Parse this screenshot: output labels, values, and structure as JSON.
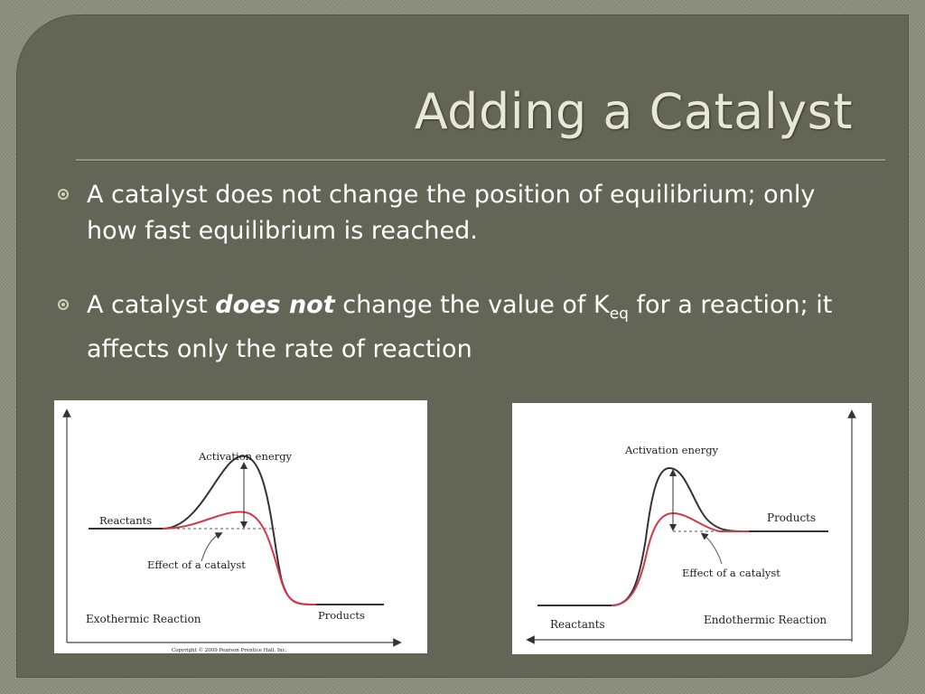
{
  "slide": {
    "title": "Adding a Catalyst",
    "bullets": [
      {
        "text": "A catalyst does not change the position of equilibrium; only how fast equilibrium is reached."
      },
      {
        "prefix": "A catalyst ",
        "emphasis": "does not",
        "middle": " change the value of K",
        "subscript": "eq",
        "suffix": " for a reaction; it affects only the rate of reaction"
      }
    ]
  },
  "figures": {
    "exothermic": {
      "activation_label": "Activation energy",
      "reactants_label": "Reactants",
      "catalyst_label": "Effect of a catalyst",
      "reaction_label": "Exothermic Reaction",
      "products_label": "Products",
      "copyright": "Copyright © 2009 Pearson Prentice Hall, Inc."
    },
    "endothermic": {
      "activation_label": "Activation energy",
      "products_label": "Products",
      "catalyst_label": "Effect of a catalyst",
      "reactants_label": "Reactants",
      "reaction_label": "Endothermic Reaction"
    }
  },
  "colors": {
    "slide_bg": "#636656",
    "title": "#e9e8d8",
    "uncatalyzed_curve": "#333333",
    "catalyzed_curve": "#d23a4a"
  }
}
